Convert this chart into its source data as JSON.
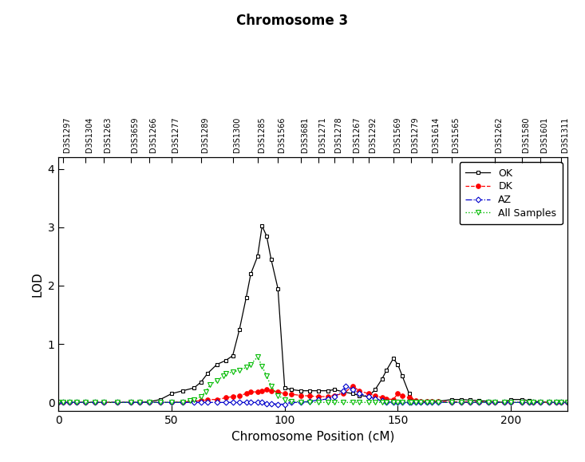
{
  "title": "Chromosome 3",
  "xlabel": "Chromosome Position (cM)",
  "ylabel": "LOD",
  "xlim": [
    0,
    225
  ],
  "ylim": [
    -0.15,
    4.2
  ],
  "yticks": [
    0,
    1,
    2,
    3,
    4
  ],
  "xticks": [
    0,
    50,
    100,
    150,
    200
  ],
  "markers": [
    "D3S1297",
    "D3S1304",
    "D3S1263",
    "D3S3659",
    "D3S1266",
    "D3S1277",
    "D3S1289",
    "D3S1300",
    "D3S1285",
    "D3S1566",
    "D3S3681",
    "D3S1271",
    "D3S1278",
    "D3S1267",
    "D3S1292",
    "D3S1569",
    "D3S1279",
    "D3S1614",
    "D3S1565",
    "D3S1262",
    "D3S1580",
    "D3S1601",
    "D3S1311"
  ],
  "marker_positions": [
    2,
    12,
    20,
    32,
    40,
    50,
    63,
    77,
    88,
    97,
    107,
    115,
    122,
    130,
    137,
    148,
    156,
    165,
    174,
    193,
    205,
    213,
    222
  ],
  "OK_x": [
    0,
    2,
    5,
    8,
    12,
    16,
    20,
    26,
    32,
    36,
    40,
    45,
    50,
    55,
    60,
    63,
    66,
    70,
    74,
    77,
    80,
    83,
    85,
    88,
    90,
    92,
    94,
    97,
    100,
    103,
    107,
    111,
    115,
    119,
    122,
    126,
    130,
    133,
    137,
    140,
    143,
    145,
    148,
    150,
    152,
    155,
    156,
    158,
    160,
    163,
    165,
    168,
    174,
    178,
    182,
    186,
    190,
    193,
    197,
    200,
    205,
    208,
    210,
    213,
    217,
    220,
    222,
    225
  ],
  "OK_y": [
    0,
    0,
    0,
    0,
    0,
    0,
    0,
    0,
    0,
    0,
    0.01,
    0.05,
    0.15,
    0.2,
    0.25,
    0.35,
    0.5,
    0.65,
    0.72,
    0.8,
    1.25,
    1.8,
    2.2,
    2.5,
    3.02,
    2.85,
    2.45,
    1.95,
    0.25,
    0.22,
    0.2,
    0.2,
    0.2,
    0.2,
    0.22,
    0.18,
    0.15,
    0.12,
    0.1,
    0.22,
    0.4,
    0.55,
    0.75,
    0.65,
    0.45,
    0.15,
    0.05,
    0.02,
    0.01,
    0.0,
    0.02,
    0.02,
    0.05,
    0.05,
    0.04,
    0.03,
    0.02,
    0.01,
    0.0,
    0.05,
    0.05,
    0.03,
    0.02,
    0.01,
    0.0,
    0.0,
    0.0,
    0.0
  ],
  "DK_x": [
    0,
    2,
    5,
    8,
    12,
    16,
    20,
    26,
    32,
    36,
    40,
    45,
    50,
    55,
    60,
    63,
    66,
    70,
    74,
    77,
    80,
    83,
    85,
    88,
    90,
    92,
    94,
    97,
    100,
    103,
    107,
    111,
    115,
    119,
    122,
    126,
    130,
    133,
    137,
    140,
    143,
    145,
    148,
    150,
    152,
    155,
    156,
    158,
    160,
    163,
    165,
    168,
    174,
    178,
    182,
    186,
    190,
    193,
    197,
    200,
    205,
    208,
    210,
    213,
    217,
    220,
    222,
    225
  ],
  "DK_y": [
    0,
    0,
    0,
    0,
    0,
    0,
    0,
    0,
    0,
    0,
    0,
    0,
    0,
    0.01,
    0.02,
    0.03,
    0.05,
    0.05,
    0.08,
    0.1,
    0.12,
    0.15,
    0.18,
    0.18,
    0.2,
    0.22,
    0.2,
    0.18,
    0.15,
    0.14,
    0.12,
    0.11,
    0.1,
    0.1,
    0.12,
    0.15,
    0.28,
    0.2,
    0.15,
    0.12,
    0.08,
    0.06,
    0.05,
    0.15,
    0.12,
    0.08,
    0.05,
    0.03,
    0.02,
    0.02,
    0.02,
    0.02,
    0.01,
    0.01,
    0.01,
    0.01,
    0.0,
    0.0,
    0.0,
    0.0,
    0.0,
    0.0,
    0.0,
    0.0,
    0.0,
    0.0,
    0.0,
    0.0
  ],
  "AZ_x": [
    0,
    2,
    5,
    8,
    12,
    16,
    20,
    26,
    32,
    36,
    40,
    45,
    50,
    55,
    60,
    63,
    66,
    70,
    74,
    77,
    80,
    83,
    85,
    88,
    90,
    92,
    94,
    97,
    100,
    103,
    107,
    111,
    115,
    119,
    122,
    126,
    127,
    130,
    133,
    137,
    140,
    143,
    145,
    148,
    150,
    152,
    155,
    156,
    158,
    160,
    163,
    165,
    168,
    174,
    178,
    182,
    186,
    190,
    193,
    197,
    200,
    205,
    208,
    210,
    213,
    217,
    220,
    222,
    225
  ],
  "AZ_y": [
    0,
    0,
    0,
    0,
    0,
    0,
    0,
    0,
    0,
    0,
    0,
    0,
    0,
    0,
    0,
    0,
    0,
    0,
    0,
    0,
    0,
    0,
    0,
    0,
    0,
    -0.02,
    -0.02,
    -0.03,
    -0.03,
    0,
    0.0,
    0.02,
    0.04,
    0.06,
    0.1,
    0.2,
    0.28,
    0.22,
    0.15,
    0.1,
    0.06,
    0.03,
    0.01,
    0.0,
    0.0,
    0.0,
    0.0,
    0.0,
    0.0,
    0.0,
    0.0,
    0.0,
    0.0,
    0.0,
    0.0,
    0.0,
    0.0,
    0.0,
    0.0,
    0.0,
    0.0,
    0.0,
    0.0,
    0.0,
    0.0,
    0.0,
    0.0,
    0.0,
    0.0
  ],
  "AS_x": [
    0,
    2,
    5,
    8,
    12,
    16,
    20,
    26,
    32,
    36,
    40,
    45,
    50,
    55,
    58,
    60,
    63,
    65,
    67,
    70,
    73,
    74,
    77,
    80,
    83,
    85,
    88,
    90,
    92,
    94,
    97,
    100,
    103,
    107,
    111,
    115,
    119,
    122,
    126,
    130,
    133,
    137,
    140,
    143,
    145,
    148,
    150,
    152,
    155,
    156,
    158,
    160,
    163,
    165,
    168,
    174,
    178,
    182,
    186,
    190,
    193,
    197,
    200,
    205,
    208,
    210,
    213,
    217,
    220,
    222,
    225
  ],
  "AS_y": [
    0,
    0,
    0,
    0,
    0,
    0,
    0,
    0,
    0,
    0,
    0,
    0,
    0,
    0.01,
    0.03,
    0.05,
    0.1,
    0.18,
    0.3,
    0.38,
    0.45,
    0.5,
    0.52,
    0.55,
    0.6,
    0.65,
    0.78,
    0.62,
    0.45,
    0.28,
    0.12,
    0.05,
    0.02,
    0.01,
    0.0,
    0.0,
    0.0,
    0.0,
    0.0,
    0.0,
    0.0,
    0.0,
    0.0,
    0.0,
    0.0,
    0.0,
    0.0,
    0.0,
    0.0,
    0.0,
    0.0,
    0.0,
    0.0,
    0.0,
    0.0,
    0.0,
    0.0,
    0.0,
    0.0,
    0.0,
    0.0,
    0.0,
    0.0,
    0.0,
    0.0,
    0.0,
    0.0,
    0.0,
    0.0,
    0.0,
    0.0
  ],
  "OK_color": "#000000",
  "DK_color": "#ff0000",
  "AZ_color": "#0000cc",
  "AS_color": "#00bb00",
  "legend_labels": [
    "OK",
    "DK",
    "AZ",
    "All Samples"
  ],
  "title_fontsize": 12,
  "axis_fontsize": 11,
  "tick_fontsize": 10,
  "marker_label_fontsize": 7
}
